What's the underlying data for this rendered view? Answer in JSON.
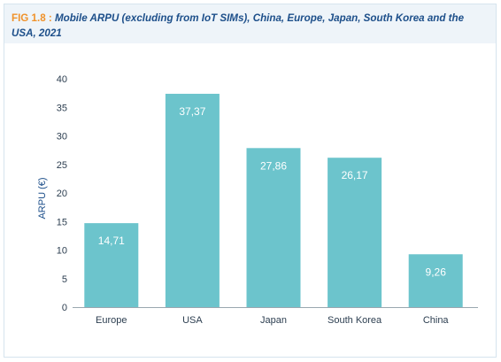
{
  "figure": {
    "label": "FIG 1.8 :",
    "title": "Mobile ARPU (excluding from IoT SIMs), China, Europe, Japan, South Korea and the USA, 2021"
  },
  "chart_data": {
    "type": "bar",
    "title": "Mobile ARPU (excluding from IoT SIMs), China, Europe, Japan, South Korea and the USA, 2021",
    "xlabel": "",
    "ylabel": "ARPU (€)",
    "categories": [
      "Europe",
      "USA",
      "Japan",
      "South Korea",
      "China"
    ],
    "values": [
      14.71,
      37.37,
      27.86,
      26.17,
      9.26
    ],
    "value_labels": [
      "14,71",
      "37,37",
      "27,86",
      "26,17",
      "9,26"
    ],
    "ylim": [
      0,
      40
    ],
    "yticks": [
      0,
      5,
      10,
      15,
      20,
      25,
      30,
      35,
      40
    ],
    "bar_color": "#6cc4cc",
    "grid": false,
    "legend": "none"
  }
}
